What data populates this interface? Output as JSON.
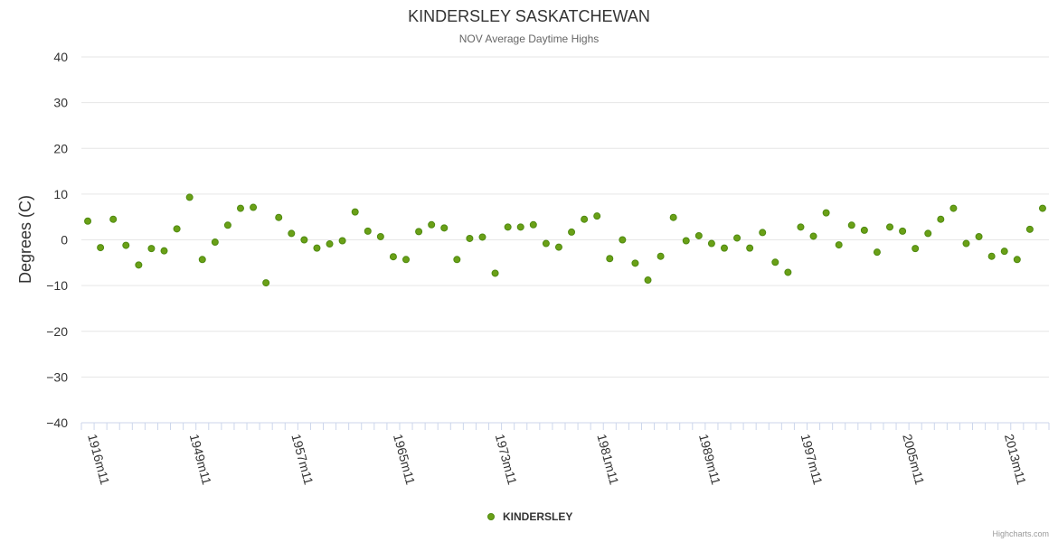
{
  "chart_data": {
    "type": "scatter",
    "title": "KINDERSLEY SASKATCHEWAN",
    "subtitle": "NOV Average Daytime Highs",
    "ylabel": "Degrees (C)",
    "ylim": [
      -40,
      40
    ],
    "yticks": [
      40,
      30,
      20,
      10,
      0,
      -10,
      -20,
      -30,
      -40
    ],
    "ytick_labels": [
      "40",
      "30",
      "20",
      "10",
      "0",
      "−10",
      "−20",
      "−30",
      "−40"
    ],
    "xtick_labels": [
      "1916m11",
      "1949m11",
      "1957m11",
      "1965m11",
      "1973m11",
      "1981m11",
      "1989m11",
      "1997m11",
      "2005m11",
      "2013m11"
    ],
    "series": [
      {
        "name": "KINDERSLEY",
        "color": "#6aa017",
        "values": [
          4.1,
          -1.7,
          4.5,
          -1.2,
          -5.5,
          -1.9,
          -2.4,
          2.4,
          9.3,
          -4.3,
          -0.5,
          3.2,
          6.9,
          7.1,
          -9.4,
          4.9,
          1.4,
          0.0,
          -1.8,
          -0.9,
          -0.2,
          6.1,
          1.9,
          0.7,
          -3.7,
          -4.3,
          1.8,
          3.3,
          2.6,
          -4.3,
          0.3,
          0.6,
          -7.3,
          2.8,
          2.8,
          3.3,
          -0.8,
          -1.6,
          1.7,
          4.5,
          5.2,
          -4.1,
          0.0,
          -5.1,
          -8.8,
          -3.6,
          4.9,
          -0.2,
          0.9,
          -0.8,
          -1.8,
          0.4,
          -1.8,
          1.6,
          -4.9,
          -7.1,
          2.8,
          0.8,
          5.9,
          -1.1,
          3.2,
          2.1,
          -2.7,
          2.8,
          1.9,
          -1.9,
          1.4,
          4.5,
          6.9,
          -0.8,
          0.7,
          -3.6,
          -2.5,
          -4.3,
          2.3,
          6.9
        ]
      }
    ],
    "legend": {
      "position": "bottom-center"
    }
  },
  "credit": "Highcharts.com"
}
